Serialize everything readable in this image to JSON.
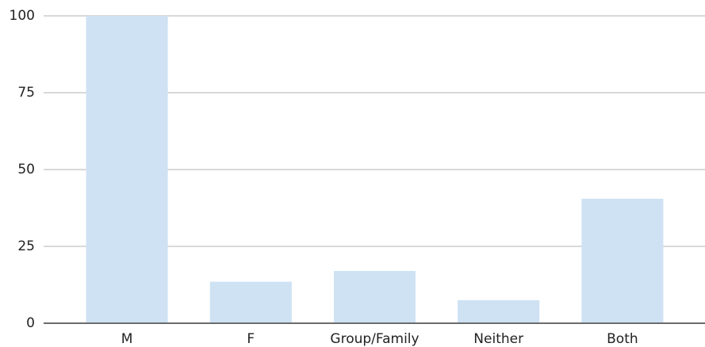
{
  "chart_data": {
    "type": "bar",
    "categories": [
      "M",
      "F",
      "Group/Family",
      "Neither",
      "Both"
    ],
    "values": [
      100,
      13.5,
      17,
      7.5,
      40.5
    ],
    "color": "#cfe2f3",
    "ylim": [
      0,
      100
    ],
    "yticks": [
      0,
      25,
      50,
      75,
      100
    ],
    "grid": true
  }
}
